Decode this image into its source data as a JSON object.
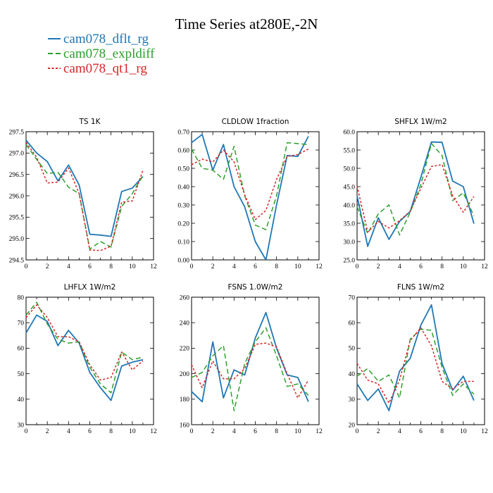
{
  "figure": {
    "title": "Time Series at280E,-2N",
    "legend": [
      {
        "name": "cam078_dflt_rg",
        "color": "#1f77b4",
        "dash": "solid"
      },
      {
        "name": "cam078_expldiff",
        "color": "#2ca02c",
        "dash": "dashed"
      },
      {
        "name": "cam078_qt1_rg",
        "color": "#d62728",
        "dash": "dotted"
      }
    ]
  },
  "chart_data": [
    {
      "type": "line",
      "title": "TS   1K",
      "x": [
        0,
        1,
        2,
        3,
        4,
        5,
        6,
        7,
        8,
        9,
        10,
        11
      ],
      "xlim": [
        0,
        12
      ],
      "xticks": [
        0,
        2,
        4,
        6,
        8,
        10,
        12
      ],
      "ylim": [
        294.5,
        297.5
      ],
      "yticks": [
        294.5,
        295.0,
        295.5,
        296.0,
        296.5,
        297.0,
        297.5
      ],
      "ytick_labels": [
        "294.5",
        "295.0",
        "295.5",
        "296.0",
        "296.5",
        "297.0",
        "297.5"
      ],
      "series": [
        {
          "name": "cam078_dflt_rg",
          "values": [
            297.3,
            297.0,
            296.8,
            296.35,
            296.72,
            296.25,
            295.1,
            295.08,
            295.05,
            296.1,
            296.18,
            296.45
          ]
        },
        {
          "name": "cam078_expldiff",
          "values": [
            297.2,
            296.85,
            296.52,
            296.55,
            296.2,
            296.05,
            294.75,
            294.93,
            294.8,
            295.75,
            296.05,
            296.48
          ]
        },
        {
          "name": "cam078_qt1_rg",
          "values": [
            297.25,
            296.9,
            296.3,
            296.32,
            296.65,
            296.05,
            294.73,
            294.72,
            294.82,
            295.85,
            295.88,
            296.6
          ]
        }
      ]
    },
    {
      "type": "line",
      "title": "CLDLOW   1fraction",
      "x": [
        0,
        1,
        2,
        3,
        4,
        5,
        6,
        7,
        8,
        9,
        10,
        11
      ],
      "xlim": [
        0,
        12
      ],
      "xticks": [
        0,
        2,
        4,
        6,
        8,
        10,
        12
      ],
      "ylim": [
        0.0,
        0.7
      ],
      "yticks": [
        0.0,
        0.1,
        0.2,
        0.3,
        0.4,
        0.5,
        0.6,
        0.7
      ],
      "ytick_labels": [
        "0.00",
        "0.10",
        "0.20",
        "0.30",
        "0.40",
        "0.50",
        "0.60",
        "0.70"
      ],
      "series": [
        {
          "name": "cam078_dflt_rg",
          "values": [
            0.64,
            0.685,
            0.49,
            0.63,
            0.4,
            0.29,
            0.1,
            0.0,
            0.3,
            0.57,
            0.565,
            0.675
          ]
        },
        {
          "name": "cam078_expldiff",
          "values": [
            0.605,
            0.5,
            0.49,
            0.44,
            0.62,
            0.35,
            0.19,
            0.165,
            0.35,
            0.64,
            0.635,
            0.63
          ]
        },
        {
          "name": "cam078_qt1_rg",
          "values": [
            0.52,
            0.55,
            0.535,
            0.6,
            0.535,
            0.355,
            0.22,
            0.27,
            0.44,
            0.565,
            0.575,
            0.605
          ]
        }
      ]
    },
    {
      "type": "line",
      "title": "SHFLX   1W/m2",
      "x": [
        0,
        1,
        2,
        3,
        4,
        5,
        6,
        7,
        8,
        9,
        10,
        11
      ],
      "xlim": [
        0,
        12
      ],
      "xticks": [
        0,
        2,
        4,
        6,
        8,
        10,
        12
      ],
      "ylim": [
        25.0,
        60.0
      ],
      "yticks": [
        25,
        30,
        35,
        40,
        45,
        50,
        55,
        60
      ],
      "ytick_labels": [
        "25.0",
        "30.0",
        "35.0",
        "40.0",
        "45.0",
        "50.0",
        "55.0",
        "60.0"
      ],
      "series": [
        {
          "name": "cam078_dflt_rg",
          "values": [
            42.5,
            28.7,
            36.5,
            30.6,
            35.5,
            38.2,
            47.5,
            57.2,
            57.1,
            46.5,
            45.0,
            34.9
          ]
        },
        {
          "name": "cam078_expldiff",
          "values": [
            39.5,
            32.2,
            37.6,
            40.0,
            31.8,
            38.0,
            45.5,
            56.8,
            53.5,
            41.2,
            43.3,
            37.0
          ]
        },
        {
          "name": "cam078_qt1_rg",
          "values": [
            45.2,
            32.6,
            35.5,
            33.7,
            35.7,
            38.3,
            44.5,
            50.5,
            51.0,
            42.5,
            38.0,
            42.3
          ]
        }
      ]
    },
    {
      "type": "line",
      "title": "LHFLX   1W/m2",
      "x": [
        0,
        1,
        2,
        3,
        4,
        5,
        6,
        7,
        8,
        9,
        10,
        11
      ],
      "xlim": [
        0,
        12
      ],
      "xticks": [
        0,
        2,
        4,
        6,
        8,
        10,
        12
      ],
      "ylim": [
        30,
        80
      ],
      "yticks": [
        30,
        40,
        50,
        60,
        70,
        80
      ],
      "ytick_labels": [
        "30",
        "40",
        "50",
        "60",
        "70",
        "80"
      ],
      "series": [
        {
          "name": "cam078_dflt_rg",
          "values": [
            66,
            73,
            70.5,
            61,
            67,
            62,
            50.5,
            44.5,
            39.5,
            53,
            54.5,
            55.5
          ]
        },
        {
          "name": "cam078_expldiff",
          "values": [
            73,
            78,
            69.5,
            63.5,
            62,
            62.5,
            52.5,
            46,
            42.5,
            58.5,
            55.5,
            56.5
          ]
        },
        {
          "name": "cam078_qt1_rg",
          "values": [
            72,
            77,
            72,
            64.5,
            64.5,
            62.5,
            53.5,
            47.5,
            48.5,
            58.5,
            51.5,
            55
          ]
        }
      ]
    },
    {
      "type": "line",
      "title": "FSNS   1.0W/m2",
      "x": [
        0,
        1,
        2,
        3,
        4,
        5,
        6,
        7,
        8,
        9,
        10,
        11
      ],
      "xlim": [
        0,
        12
      ],
      "xticks": [
        0,
        2,
        4,
        6,
        8,
        10,
        12
      ],
      "ylim": [
        160,
        260
      ],
      "yticks": [
        160,
        180,
        200,
        220,
        240,
        260
      ],
      "ytick_labels": [
        "160",
        "180",
        "200",
        "220",
        "240",
        "260"
      ],
      "series": [
        {
          "name": "cam078_dflt_rg",
          "values": [
            186,
            178,
            225,
            181,
            203,
            199,
            228,
            248,
            220,
            199,
            197,
            178
          ]
        },
        {
          "name": "cam078_expldiff",
          "values": [
            197,
            201,
            214,
            222,
            171,
            208,
            225,
            236,
            214,
            190,
            192,
            183
          ]
        },
        {
          "name": "cam078_qt1_rg",
          "values": [
            207,
            189,
            210,
            196,
            196,
            204,
            223,
            224,
            221,
            200,
            181,
            195
          ]
        }
      ]
    },
    {
      "type": "line",
      "title": "FLNS   1W/m2",
      "x": [
        0,
        1,
        2,
        3,
        4,
        5,
        6,
        7,
        8,
        9,
        10,
        11
      ],
      "xlim": [
        0,
        12
      ],
      "xticks": [
        0,
        2,
        4,
        6,
        8,
        10,
        12
      ],
      "ylim": [
        20,
        70
      ],
      "yticks": [
        20,
        30,
        40,
        50,
        60,
        70
      ],
      "ytick_labels": [
        "20",
        "30",
        "40",
        "50",
        "60",
        "70"
      ],
      "series": [
        {
          "name": "cam078_dflt_rg",
          "values": [
            36,
            29.5,
            34,
            25.5,
            41,
            46,
            59,
            67,
            44,
            33.5,
            39,
            29.5
          ]
        },
        {
          "name": "cam078_expldiff",
          "values": [
            39,
            42,
            37,
            39.5,
            30.5,
            53.5,
            57.5,
            57,
            42.5,
            31.5,
            36,
            32
          ]
        },
        {
          "name": "cam078_qt1_rg",
          "values": [
            44,
            37.5,
            36,
            28.5,
            37.5,
            53,
            58,
            51,
            37,
            34,
            37,
            37
          ]
        }
      ]
    }
  ]
}
